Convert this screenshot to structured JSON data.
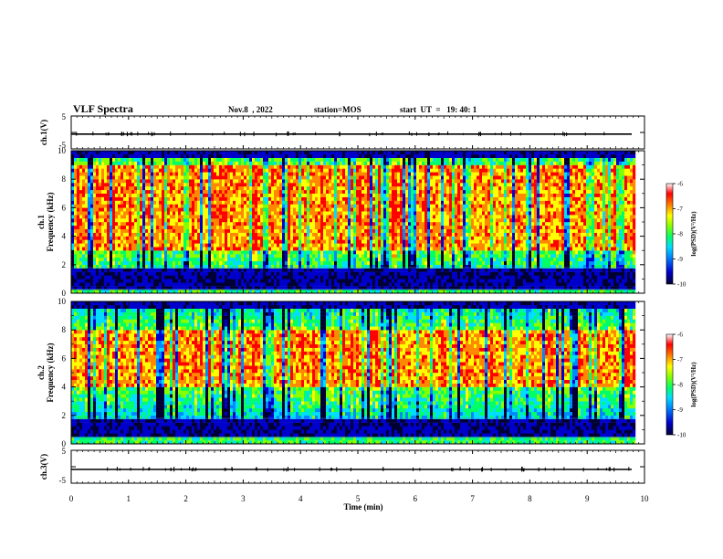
{
  "header": {
    "title": "VLF Spectra",
    "date": "Nov.8  , 2022",
    "station": "station=MOS",
    "start": "start  UT  =   19: 40: 1"
  },
  "chart_data": [
    {
      "type": "line",
      "panel": "ch1-voltage",
      "ylabel": "ch.1(V)",
      "ylim": [
        -5,
        5
      ],
      "yticks": [
        "5",
        "-5"
      ],
      "xlim": [
        0,
        10
      ],
      "series": [
        {
          "values_approx": -0.5
        }
      ]
    },
    {
      "type": "heatmap",
      "panel": "ch1-spectrogram",
      "ylabel": "ch.1 Frequency (kHz)",
      "ylim": [
        0,
        10
      ],
      "yticks": [
        "0",
        "2",
        "4",
        "6",
        "8",
        "10"
      ],
      "xlim": [
        0,
        9.8
      ],
      "colorbar": {
        "label": "log(PSD)(V²/Hz)",
        "range": [
          -10,
          -6
        ],
        "ticks": [
          "-6",
          "-7",
          "-8",
          "-9",
          "-10"
        ]
      },
      "features": {
        "noise_band_khz": [
          0.3,
          1.8
        ],
        "dominant_band_khz": [
          3,
          9
        ],
        "peak_level": -7
      }
    },
    {
      "type": "heatmap",
      "panel": "ch2-spectrogram",
      "ylabel": "ch.2 Frequency (kHz)",
      "ylim": [
        0,
        10
      ],
      "yticks": [
        "0",
        "2",
        "4",
        "6",
        "8",
        "10"
      ],
      "xlim": [
        0,
        9.8
      ],
      "colorbar": {
        "label": "log(PSD)(V²/Hz)",
        "range": [
          -10,
          -6
        ],
        "ticks": [
          "-6",
          "-7",
          "-8",
          "-9",
          "-10"
        ]
      },
      "features": {
        "noise_band_khz": [
          0.4,
          1.8
        ],
        "dominant_band_khz": [
          4,
          8
        ],
        "peak_level": -7
      }
    },
    {
      "type": "line",
      "panel": "ch3-voltage",
      "ylabel": "ch.3(V)",
      "ylim": [
        -5,
        5
      ],
      "yticks": [
        "5",
        "-5"
      ],
      "xlim": [
        0,
        10
      ],
      "series": [
        {
          "values_approx": -0.8
        }
      ]
    }
  ],
  "xaxis": {
    "label": "Time  (min)",
    "ticks": [
      "0",
      "1",
      "2",
      "3",
      "4",
      "5",
      "6",
      "7",
      "8",
      "9",
      "10"
    ],
    "range": [
      0,
      10
    ]
  },
  "colors": {
    "background": "#ffffff",
    "frame": "#000000",
    "colormap": [
      "#000033",
      "#0000cc",
      "#0088ff",
      "#00ddff",
      "#00ff66",
      "#88ff00",
      "#ffff00",
      "#ff8800",
      "#ff0000",
      "#ffffff"
    ]
  }
}
